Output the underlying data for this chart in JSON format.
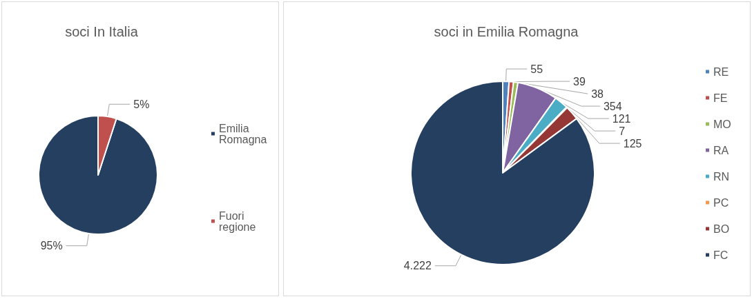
{
  "chart_data": [
    {
      "type": "pie",
      "title": "soci In Italia",
      "categories": [
        "Emilia Romagna",
        "Fuori regione"
      ],
      "values": [
        95,
        5
      ],
      "colors": [
        "#243f60",
        "#c0504d"
      ],
      "value_labels": [
        "95%",
        "5%"
      ],
      "legend": "right"
    },
    {
      "type": "pie",
      "title": "soci in Emilia Romagna",
      "categories": [
        "RE",
        "FE",
        "MO",
        "RA",
        "RN",
        "PC",
        "BO",
        "FC"
      ],
      "values": [
        55,
        39,
        38,
        354,
        121,
        7,
        125,
        4222
      ],
      "colors": [
        "#4f81bd",
        "#c0504d",
        "#9bbb59",
        "#8064a2",
        "#4bacc6",
        "#f79646",
        "#953735",
        "#243f60"
      ],
      "value_labels": [
        "55",
        "39",
        "38",
        "354",
        "121",
        "7",
        "125",
        "4.222"
      ],
      "legend": "right"
    }
  ]
}
